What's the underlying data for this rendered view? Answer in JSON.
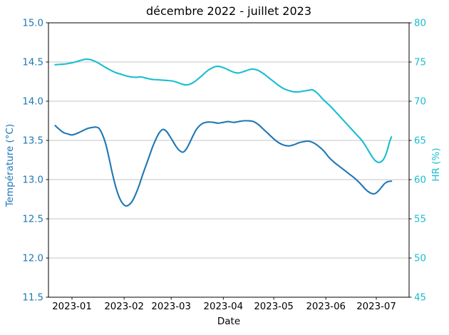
{
  "figure": {
    "background": "#ffffff",
    "spine_color": "#000000",
    "grid_color": "#b0b0b0"
  },
  "chart_data": {
    "type": "line",
    "title": "décembre 2022 - juillet 2023",
    "xlabel": "Date",
    "grid": true,
    "legend": false,
    "x_tick_labels": [
      "2023-01",
      "2023-02",
      "2023-03",
      "2023-04",
      "2023-05",
      "2023-06",
      "2023-07"
    ],
    "x_tick_days": [
      10,
      41,
      69,
      100,
      130,
      161,
      191
    ],
    "x_range_days": [
      0,
      200
    ],
    "left_axis": {
      "label": "Température (°C)",
      "color": "#1f77b4",
      "min": 11.5,
      "max": 15.0,
      "ticks": [
        "15.0",
        "14.5",
        "14.0",
        "13.5",
        "13.0",
        "12.5",
        "12.0",
        "11.5"
      ],
      "tick_values": [
        15.0,
        14.5,
        14.0,
        13.5,
        13.0,
        12.5,
        12.0,
        11.5
      ]
    },
    "right_axis": {
      "label": "HR (%)",
      "color": "#17becf",
      "min": 45,
      "max": 80,
      "ticks": [
        "80",
        "75",
        "70",
        "65",
        "60",
        "55",
        "50",
        "45"
      ],
      "tick_values": [
        80,
        75,
        70,
        65,
        60,
        55,
        50,
        45
      ]
    },
    "series": [
      {
        "name": "Température (°C)",
        "axis": "left",
        "color": "#1f77b4",
        "line_width": 2.1,
        "points": [
          [
            0,
            13.69
          ],
          [
            2,
            13.65
          ],
          [
            5,
            13.6
          ],
          [
            8,
            13.58
          ],
          [
            10,
            13.57
          ],
          [
            13,
            13.59
          ],
          [
            16,
            13.62
          ],
          [
            19,
            13.65
          ],
          [
            22,
            13.665
          ],
          [
            24,
            13.67
          ],
          [
            26,
            13.655
          ],
          [
            28,
            13.58
          ],
          [
            30,
            13.46
          ],
          [
            32,
            13.28
          ],
          [
            34,
            13.08
          ],
          [
            36,
            12.91
          ],
          [
            38,
            12.78
          ],
          [
            40,
            12.7
          ],
          [
            42,
            12.665
          ],
          [
            44,
            12.68
          ],
          [
            46,
            12.73
          ],
          [
            48,
            12.82
          ],
          [
            50,
            12.93
          ],
          [
            52,
            13.06
          ],
          [
            54,
            13.18
          ],
          [
            56,
            13.3
          ],
          [
            58,
            13.42
          ],
          [
            60,
            13.52
          ],
          [
            62,
            13.6
          ],
          [
            64,
            13.64
          ],
          [
            66,
            13.62
          ],
          [
            68,
            13.56
          ],
          [
            70,
            13.49
          ],
          [
            72,
            13.42
          ],
          [
            74,
            13.37
          ],
          [
            76,
            13.35
          ],
          [
            78,
            13.39
          ],
          [
            80,
            13.47
          ],
          [
            82,
            13.56
          ],
          [
            84,
            13.64
          ],
          [
            86,
            13.69
          ],
          [
            88,
            13.72
          ],
          [
            91,
            13.735
          ],
          [
            94,
            13.73
          ],
          [
            97,
            13.72
          ],
          [
            100,
            13.73
          ],
          [
            103,
            13.74
          ],
          [
            106,
            13.73
          ],
          [
            109,
            13.74
          ],
          [
            112,
            13.75
          ],
          [
            115,
            13.75
          ],
          [
            118,
            13.74
          ],
          [
            121,
            13.7
          ],
          [
            124,
            13.64
          ],
          [
            127,
            13.58
          ],
          [
            130,
            13.52
          ],
          [
            133,
            13.47
          ],
          [
            136,
            13.44
          ],
          [
            139,
            13.43
          ],
          [
            142,
            13.445
          ],
          [
            145,
            13.47
          ],
          [
            148,
            13.485
          ],
          [
            151,
            13.49
          ],
          [
            154,
            13.465
          ],
          [
            157,
            13.42
          ],
          [
            160,
            13.36
          ],
          [
            163,
            13.28
          ],
          [
            166,
            13.22
          ],
          [
            169,
            13.17
          ],
          [
            172,
            13.12
          ],
          [
            175,
            13.07
          ],
          [
            178,
            13.02
          ],
          [
            181,
            12.96
          ],
          [
            184,
            12.89
          ],
          [
            186,
            12.85
          ],
          [
            188,
            12.825
          ],
          [
            190,
            12.82
          ],
          [
            192,
            12.85
          ],
          [
            194,
            12.9
          ],
          [
            196,
            12.95
          ],
          [
            198,
            12.975
          ],
          [
            200,
            12.98
          ]
        ]
      },
      {
        "name": "HR (%)",
        "axis": "right",
        "color": "#17becf",
        "line_width": 2.1,
        "points": [
          [
            0,
            74.65
          ],
          [
            3,
            74.7
          ],
          [
            6,
            74.75
          ],
          [
            9,
            74.85
          ],
          [
            12,
            75.0
          ],
          [
            15,
            75.2
          ],
          [
            18,
            75.35
          ],
          [
            21,
            75.3
          ],
          [
            24,
            75.05
          ],
          [
            27,
            74.7
          ],
          [
            30,
            74.3
          ],
          [
            33,
            73.95
          ],
          [
            36,
            73.65
          ],
          [
            39,
            73.45
          ],
          [
            42,
            73.25
          ],
          [
            45,
            73.1
          ],
          [
            48,
            73.05
          ],
          [
            51,
            73.1
          ],
          [
            54,
            72.95
          ],
          [
            57,
            72.8
          ],
          [
            60,
            72.75
          ],
          [
            63,
            72.7
          ],
          [
            66,
            72.65
          ],
          [
            69,
            72.6
          ],
          [
            72,
            72.45
          ],
          [
            75,
            72.2
          ],
          [
            77,
            72.1
          ],
          [
            79,
            72.1
          ],
          [
            81,
            72.25
          ],
          [
            83,
            72.5
          ],
          [
            85,
            72.85
          ],
          [
            87,
            73.2
          ],
          [
            89,
            73.6
          ],
          [
            91,
            73.95
          ],
          [
            93,
            74.2
          ],
          [
            95,
            74.4
          ],
          [
            97,
            74.45
          ],
          [
            99,
            74.35
          ],
          [
            101,
            74.2
          ],
          [
            103,
            74.0
          ],
          [
            105,
            73.8
          ],
          [
            107,
            73.65
          ],
          [
            109,
            73.6
          ],
          [
            111,
            73.7
          ],
          [
            113,
            73.85
          ],
          [
            115,
            74.0
          ],
          [
            117,
            74.1
          ],
          [
            119,
            74.05
          ],
          [
            121,
            73.9
          ],
          [
            124,
            73.5
          ],
          [
            127,
            73.0
          ],
          [
            130,
            72.5
          ],
          [
            133,
            72.0
          ],
          [
            136,
            71.6
          ],
          [
            139,
            71.35
          ],
          [
            142,
            71.2
          ],
          [
            145,
            71.2
          ],
          [
            148,
            71.3
          ],
          [
            151,
            71.4
          ],
          [
            153,
            71.45
          ],
          [
            155,
            71.2
          ],
          [
            157,
            70.8
          ],
          [
            159,
            70.3
          ],
          [
            161,
            69.9
          ],
          [
            164,
            69.3
          ],
          [
            167,
            68.6
          ],
          [
            170,
            67.9
          ],
          [
            173,
            67.2
          ],
          [
            176,
            66.5
          ],
          [
            179,
            65.8
          ],
          [
            182,
            65.1
          ],
          [
            184,
            64.5
          ],
          [
            186,
            63.8
          ],
          [
            188,
            63.1
          ],
          [
            190,
            62.5
          ],
          [
            192,
            62.2
          ],
          [
            193.5,
            62.25
          ],
          [
            195,
            62.5
          ],
          [
            196.5,
            63.1
          ],
          [
            198,
            64.1
          ],
          [
            199,
            64.9
          ],
          [
            200,
            65.45
          ]
        ]
      }
    ]
  }
}
